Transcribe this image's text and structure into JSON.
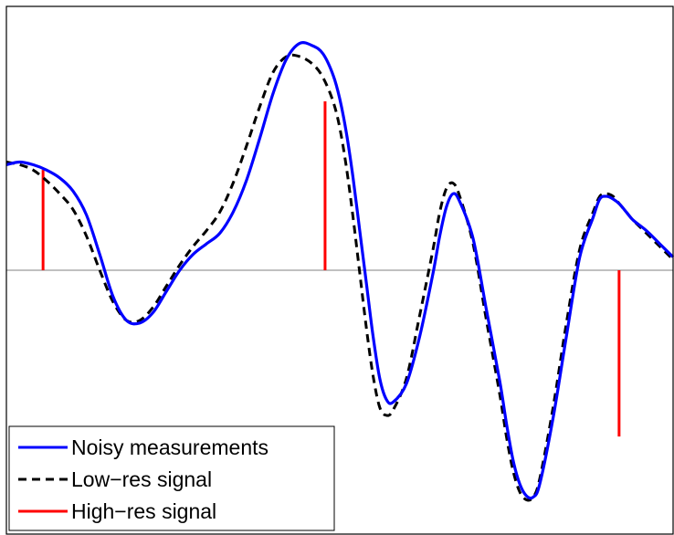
{
  "chart_data": {
    "type": "line",
    "title": "",
    "xlabel": "",
    "ylabel": "",
    "xlim": [
      0,
      100
    ],
    "ylim": [
      -1.0,
      1.0
    ],
    "grid": false,
    "axes_ticks": false,
    "zero_line": true,
    "legend_position": "bottom-left",
    "colors": {
      "noisy": "#0000ff",
      "lowres": "#000000",
      "highres": "#ff0000",
      "axis": "#000000",
      "zero_line": "#808080"
    },
    "series": [
      {
        "name": "Noisy measurements",
        "style": "solid",
        "color": "#0000ff",
        "x": [
          0,
          2,
          4,
          6,
          8,
          10,
          12,
          14,
          16,
          18,
          20,
          22,
          24,
          26,
          28,
          30,
          32,
          34,
          36,
          38,
          40,
          42,
          44,
          46,
          47.5,
          49,
          50,
          51,
          52,
          53,
          54,
          55,
          56,
          57,
          58,
          60,
          62,
          64,
          65,
          66,
          67,
          68,
          70,
          72,
          74,
          75,
          76,
          77,
          78,
          79,
          80,
          82,
          84,
          86,
          88,
          89,
          90,
          91,
          92,
          93,
          94,
          96,
          98,
          100
        ],
        "y": [
          0.4,
          0.41,
          0.4,
          0.38,
          0.35,
          0.3,
          0.21,
          0.06,
          -0.1,
          -0.19,
          -0.2,
          -0.16,
          -0.08,
          0.0,
          0.06,
          0.1,
          0.14,
          0.22,
          0.34,
          0.5,
          0.67,
          0.8,
          0.86,
          0.85,
          0.82,
          0.74,
          0.65,
          0.52,
          0.35,
          0.15,
          -0.05,
          -0.25,
          -0.41,
          -0.49,
          -0.5,
          -0.43,
          -0.25,
          -0.01,
          0.13,
          0.24,
          0.29,
          0.26,
          0.12,
          -0.15,
          -0.42,
          -0.58,
          -0.72,
          -0.81,
          -0.855,
          -0.86,
          -0.81,
          -0.56,
          -0.25,
          0.05,
          0.2,
          0.27,
          0.28,
          0.27,
          0.25,
          0.22,
          0.19,
          0.15,
          0.1,
          0.05
        ]
      },
      {
        "name": "Low−res signal",
        "style": "dashed",
        "color": "#000000",
        "x": [
          0,
          2,
          4,
          6,
          8,
          10,
          12,
          14,
          16,
          18,
          20,
          22,
          24,
          26,
          28,
          30,
          32,
          34,
          36,
          38,
          40,
          42,
          44,
          46,
          47.5,
          49,
          50,
          51,
          52,
          53,
          54,
          55,
          56,
          57,
          58,
          60,
          62,
          64,
          65,
          66,
          67,
          68,
          70,
          72,
          74,
          75,
          76,
          77,
          78,
          79,
          80,
          82,
          84,
          86,
          88,
          89,
          90,
          91,
          92,
          93,
          94,
          96,
          98,
          100
        ],
        "y": [
          0.41,
          0.4,
          0.38,
          0.34,
          0.29,
          0.23,
          0.13,
          0.0,
          -0.12,
          -0.19,
          -0.19,
          -0.14,
          -0.06,
          0.02,
          0.09,
          0.15,
          0.22,
          0.33,
          0.47,
          0.62,
          0.75,
          0.81,
          0.81,
          0.78,
          0.73,
          0.64,
          0.54,
          0.39,
          0.2,
          -0.01,
          -0.22,
          -0.4,
          -0.52,
          -0.55,
          -0.53,
          -0.41,
          -0.17,
          0.08,
          0.22,
          0.31,
          0.33,
          0.28,
          0.1,
          -0.19,
          -0.47,
          -0.63,
          -0.76,
          -0.84,
          -0.87,
          -0.86,
          -0.79,
          -0.52,
          -0.2,
          0.08,
          0.22,
          0.28,
          0.29,
          0.28,
          0.25,
          0.22,
          0.19,
          0.14,
          0.09,
          0.04
        ]
      },
      {
        "name": "High−res signal",
        "style": "stem",
        "color": "#ff0000",
        "x": [
          5.5,
          47.8,
          91.9
        ],
        "y": [
          0.38,
          0.64,
          -0.63
        ]
      }
    ]
  }
}
